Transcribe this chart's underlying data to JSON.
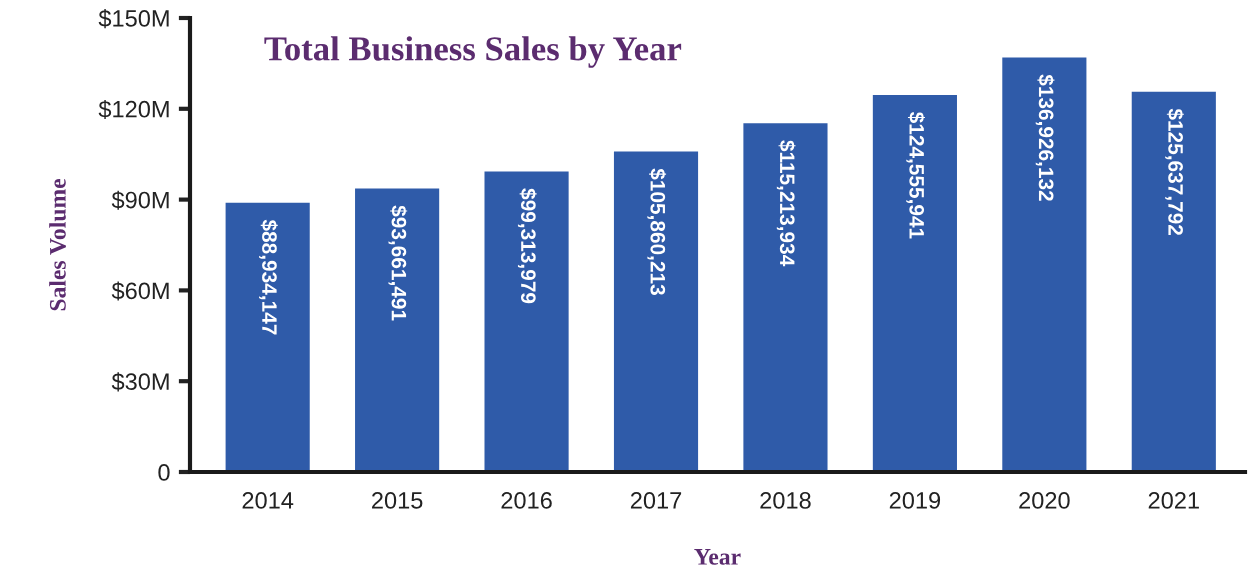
{
  "chart_data": {
    "type": "bar",
    "title": "Total Business Sales by Year",
    "xlabel": "Year",
    "ylabel": "Sales Volume",
    "categories": [
      "2014",
      "2015",
      "2016",
      "2017",
      "2018",
      "2019",
      "2020",
      "2021"
    ],
    "values": [
      88934147,
      93661491,
      99313979,
      105860213,
      115213934,
      124555941,
      136926132,
      125637792
    ],
    "value_labels": [
      "$88,934,147",
      "$93,661,491",
      "$99,313,979",
      "$105,860,213",
      "$115,213,934",
      "$124,555,941",
      "$136,926,132",
      "$125,637,792"
    ],
    "color": "#2f5ba9",
    "ylim": [
      0,
      150000000
    ],
    "yticks": [
      0,
      {
        "value": 30000000,
        "label": "$30M"
      },
      {
        "value": 60000000,
        "label": "$60M"
      },
      {
        "value": 90000000,
        "label": "$90M"
      },
      {
        "value": 120000000,
        "label": "$120M"
      },
      {
        "value": 150000000,
        "label": "$150M"
      }
    ],
    "grid": false
  }
}
